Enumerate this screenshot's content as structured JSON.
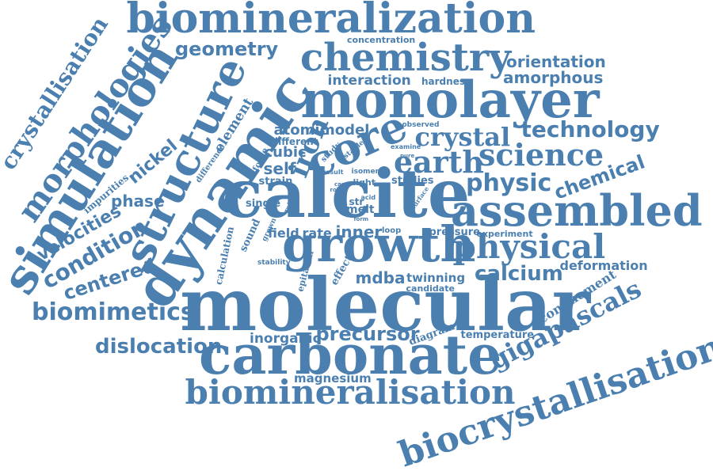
{
  "color": "#4a7fb0",
  "words": [
    {
      "text": "biomineralization"
    },
    {
      "text": "chemistry"
    },
    {
      "text": "monolayer"
    },
    {
      "text": "calcite"
    },
    {
      "text": "molecular"
    },
    {
      "text": "carbonate"
    },
    {
      "text": "biomineralisation"
    },
    {
      "text": "biocrystallisation"
    },
    {
      "text": "assembled"
    },
    {
      "text": "growth"
    },
    {
      "text": "dynamic"
    },
    {
      "text": "structure"
    },
    {
      "text": "simulation"
    },
    {
      "text": "morphologies"
    },
    {
      "text": "crystallisation"
    },
    {
      "text": "geometry"
    },
    {
      "text": "concentration"
    },
    {
      "text": "orientation"
    },
    {
      "text": "amorphous"
    },
    {
      "text": "interaction"
    },
    {
      "text": "hardness"
    },
    {
      "text": "core"
    },
    {
      "text": "crystal"
    },
    {
      "text": "technology"
    },
    {
      "text": "science"
    },
    {
      "text": "earth"
    },
    {
      "text": "physic"
    },
    {
      "text": "chemical"
    },
    {
      "text": "physical"
    },
    {
      "text": "iron"
    },
    {
      "text": "element"
    },
    {
      "text": "atomic"
    },
    {
      "text": "model"
    },
    {
      "text": "observed"
    },
    {
      "text": "different"
    },
    {
      "text": "cubic"
    },
    {
      "text": "self"
    },
    {
      "text": "nickel"
    },
    {
      "text": "phase"
    },
    {
      "text": "velocities"
    },
    {
      "text": "condition"
    },
    {
      "text": "centered"
    },
    {
      "text": "biomimetics"
    },
    {
      "text": "dislocation"
    },
    {
      "text": "impurities"
    },
    {
      "text": "difference"
    },
    {
      "text": "force"
    },
    {
      "text": "strain"
    },
    {
      "text": "single"
    },
    {
      "text": "study"
    },
    {
      "text": "stable"
    },
    {
      "text": "examine"
    },
    {
      "text": "result"
    },
    {
      "text": "isomer"
    },
    {
      "text": "light"
    },
    {
      "text": "studies"
    },
    {
      "text": "pure"
    },
    {
      "text": "role"
    },
    {
      "text": "case"
    },
    {
      "text": "relief"
    },
    {
      "text": "str"
    },
    {
      "text": "acid"
    },
    {
      "text": "melt"
    },
    {
      "text": "form"
    },
    {
      "text": "surface"
    },
    {
      "text": "field"
    },
    {
      "text": "rate"
    },
    {
      "text": "inner"
    },
    {
      "text": "loop"
    },
    {
      "text": "pressure"
    },
    {
      "text": "experiment"
    },
    {
      "text": "deformation"
    },
    {
      "text": "calcium"
    },
    {
      "text": "mdba"
    },
    {
      "text": "twinning"
    },
    {
      "text": "candidate"
    },
    {
      "text": "sound"
    },
    {
      "text": "grown"
    },
    {
      "text": "calculation"
    },
    {
      "text": "stability"
    },
    {
      "text": "epitaxial"
    },
    {
      "text": "effect"
    },
    {
      "text": "confinement"
    },
    {
      "text": "gigapascals"
    },
    {
      "text": "diagram"
    },
    {
      "text": "temperature"
    },
    {
      "text": "inorganic"
    },
    {
      "text": "precursor"
    },
    {
      "text": "magnesium"
    }
  ]
}
